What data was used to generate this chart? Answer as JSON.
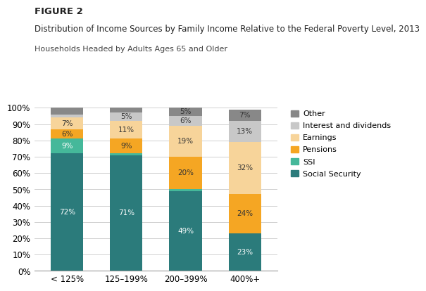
{
  "categories": [
    "< 125%",
    "125–199%",
    "200–399%",
    "400%+"
  ],
  "series": [
    {
      "name": "Social Security",
      "values": [
        72,
        71,
        49,
        23
      ],
      "color": "#2b7b7b"
    },
    {
      "name": "SSI",
      "values": [
        9,
        1,
        1,
        0
      ],
      "color": "#45b89a"
    },
    {
      "name": "Pensions",
      "values": [
        6,
        9,
        20,
        24
      ],
      "color": "#f5a623"
    },
    {
      "name": "Earnings",
      "values": [
        7,
        11,
        19,
        32
      ],
      "color": "#f7d49a"
    },
    {
      "name": "Interest and dividends",
      "values": [
        2,
        5,
        6,
        13
      ],
      "color": "#c8c8c8"
    },
    {
      "name": "Other",
      "values": [
        4,
        3,
        5,
        7
      ],
      "color": "#888888"
    }
  ],
  "show_label_min": 5,
  "figure_label": "FIGURE 2",
  "title": "Distribution of Income Sources by Family Income Relative to the Federal Poverty Level, 2013",
  "subtitle": "Households Headed by Adults Ages 65 and Older",
  "ylim": [
    0,
    100
  ],
  "yticks": [
    0,
    10,
    20,
    30,
    40,
    50,
    60,
    70,
    80,
    90,
    100
  ],
  "background_color": "#ffffff",
  "bar_width": 0.55,
  "label_color_dark": [
    "Social Security",
    "SSI"
  ],
  "label_color_light": [
    "Pensions",
    "Earnings",
    "Interest and dividends",
    "Other"
  ]
}
